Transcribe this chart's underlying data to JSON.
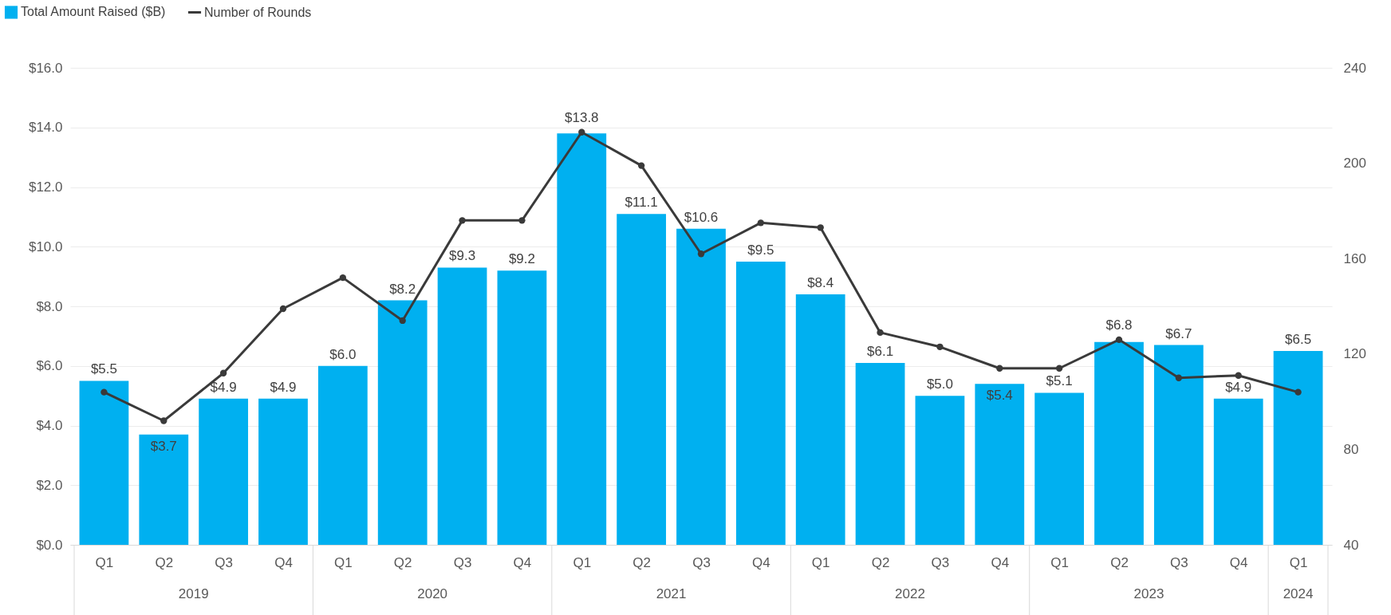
{
  "chart_data": {
    "type": "bar",
    "categories": [
      "Q1",
      "Q2",
      "Q3",
      "Q4",
      "Q1",
      "Q2",
      "Q3",
      "Q4",
      "Q1",
      "Q2",
      "Q3",
      "Q4",
      "Q1",
      "Q2",
      "Q3",
      "Q4",
      "Q1",
      "Q2",
      "Q3",
      "Q4",
      "Q1"
    ],
    "series": [
      {
        "name": "Total Amount Raised ($B)",
        "type": "bar",
        "color": "#00b0f0",
        "values": [
          5.5,
          3.7,
          4.9,
          4.9,
          6.0,
          8.2,
          9.3,
          9.2,
          13.8,
          11.1,
          10.6,
          9.5,
          8.4,
          6.1,
          5.0,
          5.4,
          5.1,
          6.8,
          6.7,
          4.9,
          6.5
        ],
        "value_labels": [
          "$5.5",
          "$3.7",
          "$4.9",
          "$4.9",
          "$6.0",
          "$8.2",
          "$9.3",
          "$9.2",
          "$13.8",
          "$11.1",
          "$10.6",
          "$9.5",
          "$8.4",
          "$6.1",
          "$5.0",
          "$5.4",
          "$5.1",
          "$6.8",
          "$6.7",
          "$4.9",
          "$6.5"
        ]
      },
      {
        "name": "Number of Rounds",
        "type": "line",
        "axis": "y2",
        "color": "#3a3a3a",
        "values": [
          104,
          92,
          112,
          139,
          152,
          134,
          176,
          176,
          213,
          199,
          162,
          175,
          173,
          129,
          123,
          114,
          114,
          126,
          110,
          111,
          104
        ]
      }
    ],
    "annotations": [
      "2019",
      "2020",
      "2021",
      "2022",
      "2023",
      "2024"
    ],
    "ylim": [
      0,
      16
    ],
    "yticks": [
      {
        "value": 0,
        "label": "$0.0"
      },
      {
        "value": 2,
        "label": "$2.0"
      },
      {
        "value": 4,
        "label": "$4.0"
      },
      {
        "value": 6,
        "label": "$6.0"
      },
      {
        "value": 8,
        "label": "$8.0"
      },
      {
        "value": 10,
        "label": "$10.0"
      },
      {
        "value": 12,
        "label": "$12.0"
      },
      {
        "value": 14,
        "label": "$14.0"
      },
      {
        "value": 16,
        "label": "$16.0"
      }
    ],
    "y2lim": [
      40,
      240
    ],
    "y2ticks": [
      40,
      80,
      120,
      160,
      200,
      240
    ],
    "grid": "y",
    "legend": "top left",
    "marker": "circle"
  }
}
